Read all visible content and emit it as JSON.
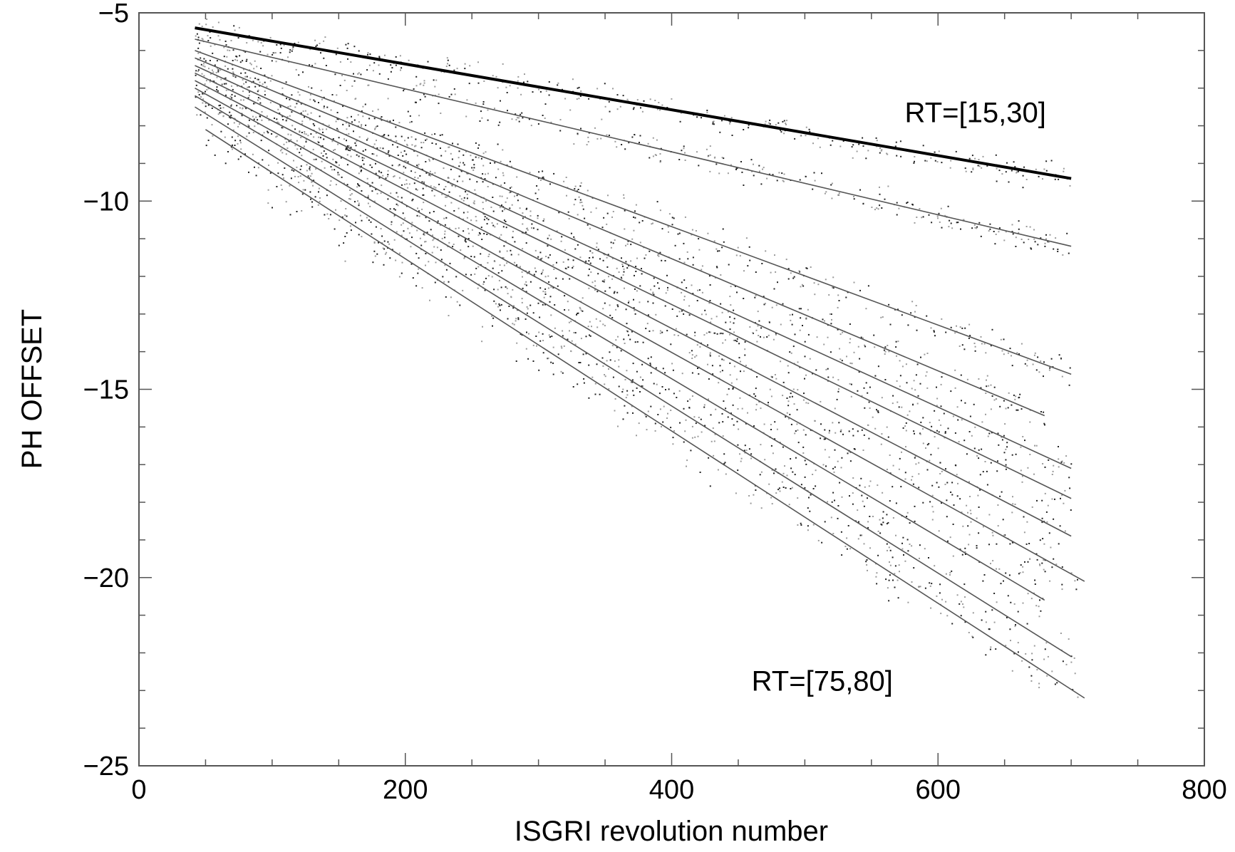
{
  "chart_data": {
    "type": "scatter",
    "title": "",
    "xlabel": "ISGRI revolution number",
    "ylabel": "PH OFFSET",
    "xlim": [
      0,
      800
    ],
    "ylim": [
      -25,
      -5
    ],
    "x_ticks": [
      0,
      200,
      400,
      600,
      800
    ],
    "x_tick_labels": [
      "0",
      "200",
      "400",
      "600",
      "800"
    ],
    "y_ticks": [
      -5,
      -10,
      -15,
      -20,
      -25
    ],
    "y_tick_labels": [
      "−5",
      "−10",
      "−15",
      "−20",
      "−25"
    ],
    "x_minor_step": 50,
    "y_minor_step": 1,
    "grid": false,
    "legend": "none",
    "annotations": [
      {
        "text": "RT=[15,30]",
        "x": 575,
        "y": -7.9
      },
      {
        "text": "RT=[75,80]",
        "x": 460,
        "y": -23.0
      }
    ],
    "series": [
      {
        "x": [
          42,
          700
        ],
        "y": [
          -5.4,
          -9.4
        ],
        "bold": true
      },
      {
        "x": [
          42,
          700
        ],
        "y": [
          -5.7,
          -11.2
        ]
      },
      {
        "x": [
          42,
          700
        ],
        "y": [
          -6.0,
          -14.6
        ]
      },
      {
        "x": [
          42,
          680
        ],
        "y": [
          -6.2,
          -15.7
        ]
      },
      {
        "x": [
          42,
          700
        ],
        "y": [
          -6.4,
          -17.1
        ]
      },
      {
        "x": [
          42,
          700
        ],
        "y": [
          -6.6,
          -17.9
        ]
      },
      {
        "x": [
          42,
          700
        ],
        "y": [
          -6.8,
          -18.9
        ]
      },
      {
        "x": [
          42,
          710
        ],
        "y": [
          -7.0,
          -20.1
        ]
      },
      {
        "x": [
          42,
          680
        ],
        "y": [
          -7.2,
          -20.6
        ]
      },
      {
        "x": [
          42,
          700
        ],
        "y": [
          -7.5,
          -22.1
        ]
      },
      {
        "x": [
          50,
          710
        ],
        "y": [
          -8.1,
          -23.2
        ]
      }
    ],
    "point_colors": [
      "#222222",
      "#9a9a9a"
    ],
    "line_color": "#555555",
    "bold_line_color": "#000000"
  }
}
